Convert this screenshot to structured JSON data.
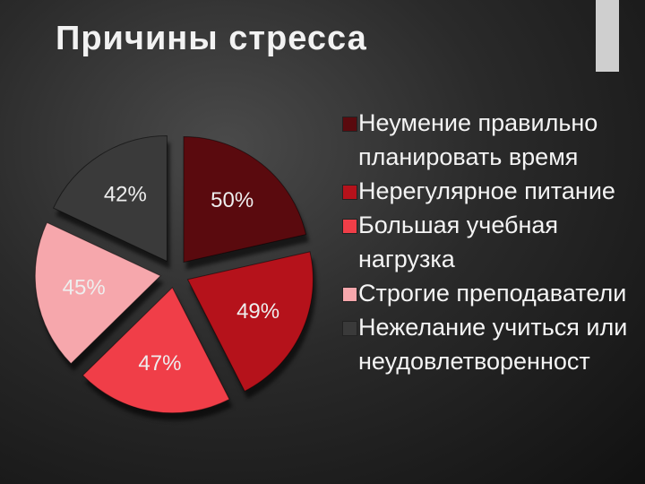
{
  "chart_data": {
    "type": "pie",
    "title": "Причины стресса",
    "categories": [
      "Неумение правильно планировать время",
      "Нерегулярное питание",
      "Большая учебная нагрузка",
      "Строгие преподаватели",
      "Нежелание учиться или неудовлетворенност"
    ],
    "values": [
      50,
      49,
      47,
      45,
      42
    ],
    "value_labels": [
      "50%",
      "49%",
      "47%",
      "45%",
      "42%"
    ],
    "colors": [
      "#5a0a0e",
      "#b5121b",
      "#f03e48",
      "#f6a7ac",
      "#3a3a3a"
    ]
  }
}
